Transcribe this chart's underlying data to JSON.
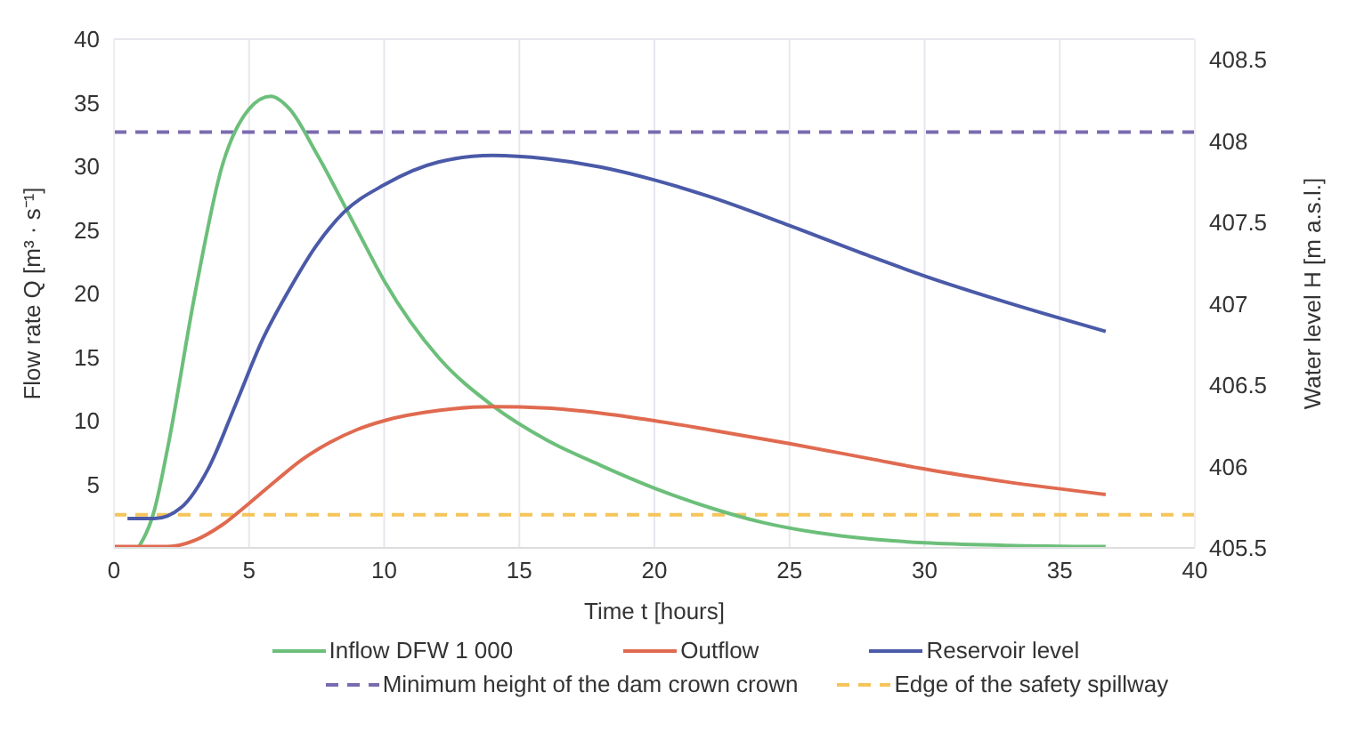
{
  "chart_data": {
    "type": "line",
    "xlabel": "Time t [hours]",
    "ylabel": "Flow rate Q [m³ · s⁻¹]",
    "y2label": "Water level H [m a.s.l.]",
    "xlim": [
      0,
      40
    ],
    "xticks": [
      0,
      5,
      10,
      15,
      20,
      25,
      30,
      35,
      40
    ],
    "ylim": [
      0,
      40
    ],
    "yticks": [
      5,
      10,
      15,
      20,
      25,
      30,
      35,
      40
    ],
    "y2lim": [
      405.5,
      408.625
    ],
    "y2ticks": [
      405.5,
      406,
      406.5,
      407,
      407.5,
      408,
      408.5
    ],
    "grid": true,
    "legend": "bottom",
    "marker": "none",
    "line_style": "solid",
    "series": [
      {
        "name": "Inflow DFW 1 000",
        "color": "#6cbf7a",
        "x": [
          0.9,
          1.5,
          2,
          3,
          4,
          5,
          5.8,
          6.5,
          7.5,
          9,
          10,
          12,
          14,
          16,
          18,
          20,
          22,
          24,
          26,
          28,
          30,
          33,
          36.7
        ],
        "values": [
          0,
          3,
          8,
          20,
          30,
          34.5,
          35.5,
          34.5,
          31,
          25,
          21,
          15,
          11.2,
          8.5,
          6.5,
          4.7,
          3.2,
          2,
          1.2,
          0.7,
          0.4,
          0.2,
          0.1
        ]
      },
      {
        "name": "Outflow",
        "color": "#e06a50",
        "x": [
          0,
          2,
          3,
          4,
          5,
          6,
          7,
          8,
          9,
          10,
          12,
          14,
          16,
          18,
          20,
          22,
          25,
          28,
          30,
          33,
          36.7
        ],
        "values": [
          0.1,
          0.1,
          0.6,
          1.8,
          3.5,
          5.3,
          7,
          8.3,
          9.3,
          10,
          10.8,
          11.1,
          11,
          10.6,
          10,
          9.3,
          8.2,
          7,
          6.2,
          5.2,
          4.2
        ]
      },
      {
        "name": "Reservoir level",
        "color": "#4a5aa8",
        "axis": "y2",
        "x": [
          0.5,
          1.5,
          2.5,
          3.5,
          4.5,
          5.5,
          6.5,
          7.5,
          8.5,
          10,
          12,
          14,
          16,
          18,
          20,
          22,
          25,
          28,
          30,
          33,
          36.7
        ],
        "values": [
          405.68,
          405.68,
          405.75,
          405.99,
          406.38,
          406.78,
          407.09,
          407.36,
          407.56,
          407.73,
          407.87,
          407.91,
          407.89,
          407.84,
          407.76,
          407.66,
          407.48,
          407.29,
          407.17,
          407.01,
          406.83
        ]
      }
    ],
    "ref_lines": [
      {
        "axis": "y",
        "value": 32.7,
        "label": "Minimum height of the dam crown crown",
        "color": "#7a6bb0",
        "line_style": "dashed"
      },
      {
        "axis": "y",
        "value": 2.6,
        "label": "Edge of the safety spillway",
        "color": "#f5c45a",
        "line_style": "dashed"
      }
    ]
  }
}
